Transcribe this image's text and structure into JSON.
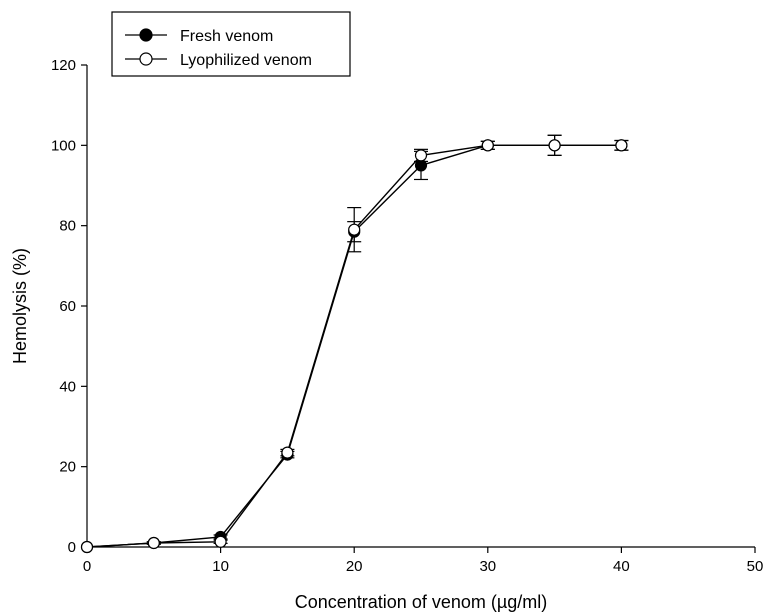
{
  "chart_data": {
    "type": "line",
    "title": "",
    "xlabel": "Concentration of venom (µg/ml)",
    "ylabel": "Hemolysis (%)",
    "xlim": [
      0,
      50
    ],
    "ylim": [
      0,
      120
    ],
    "xticks": [
      0,
      10,
      20,
      30,
      40,
      50
    ],
    "yticks": [
      0,
      20,
      40,
      60,
      80,
      100,
      120
    ],
    "grid": false,
    "legend_position": "top-left",
    "series": [
      {
        "name": "Fresh venom",
        "marker": "filled-circle",
        "color": "#000000",
        "x": [
          0,
          5,
          10,
          15,
          20,
          25,
          30,
          35,
          40
        ],
        "y": [
          0,
          1,
          2.5,
          23,
          78.5,
          95,
          100,
          100,
          100
        ],
        "error": [
          0,
          0.3,
          0.5,
          0.8,
          2.5,
          3.5,
          1.0,
          2.5,
          1.2
        ]
      },
      {
        "name": "Lyophilized venom",
        "marker": "open-circle",
        "color": "#000000",
        "x": [
          0,
          5,
          10,
          15,
          20,
          25,
          30,
          35,
          40
        ],
        "y": [
          0,
          1,
          1.3,
          23.5,
          79,
          97.5,
          100,
          100,
          100
        ],
        "error": [
          0,
          0.3,
          0.4,
          0.8,
          5.5,
          1.5,
          1.0,
          2.5,
          1.2
        ]
      }
    ]
  }
}
